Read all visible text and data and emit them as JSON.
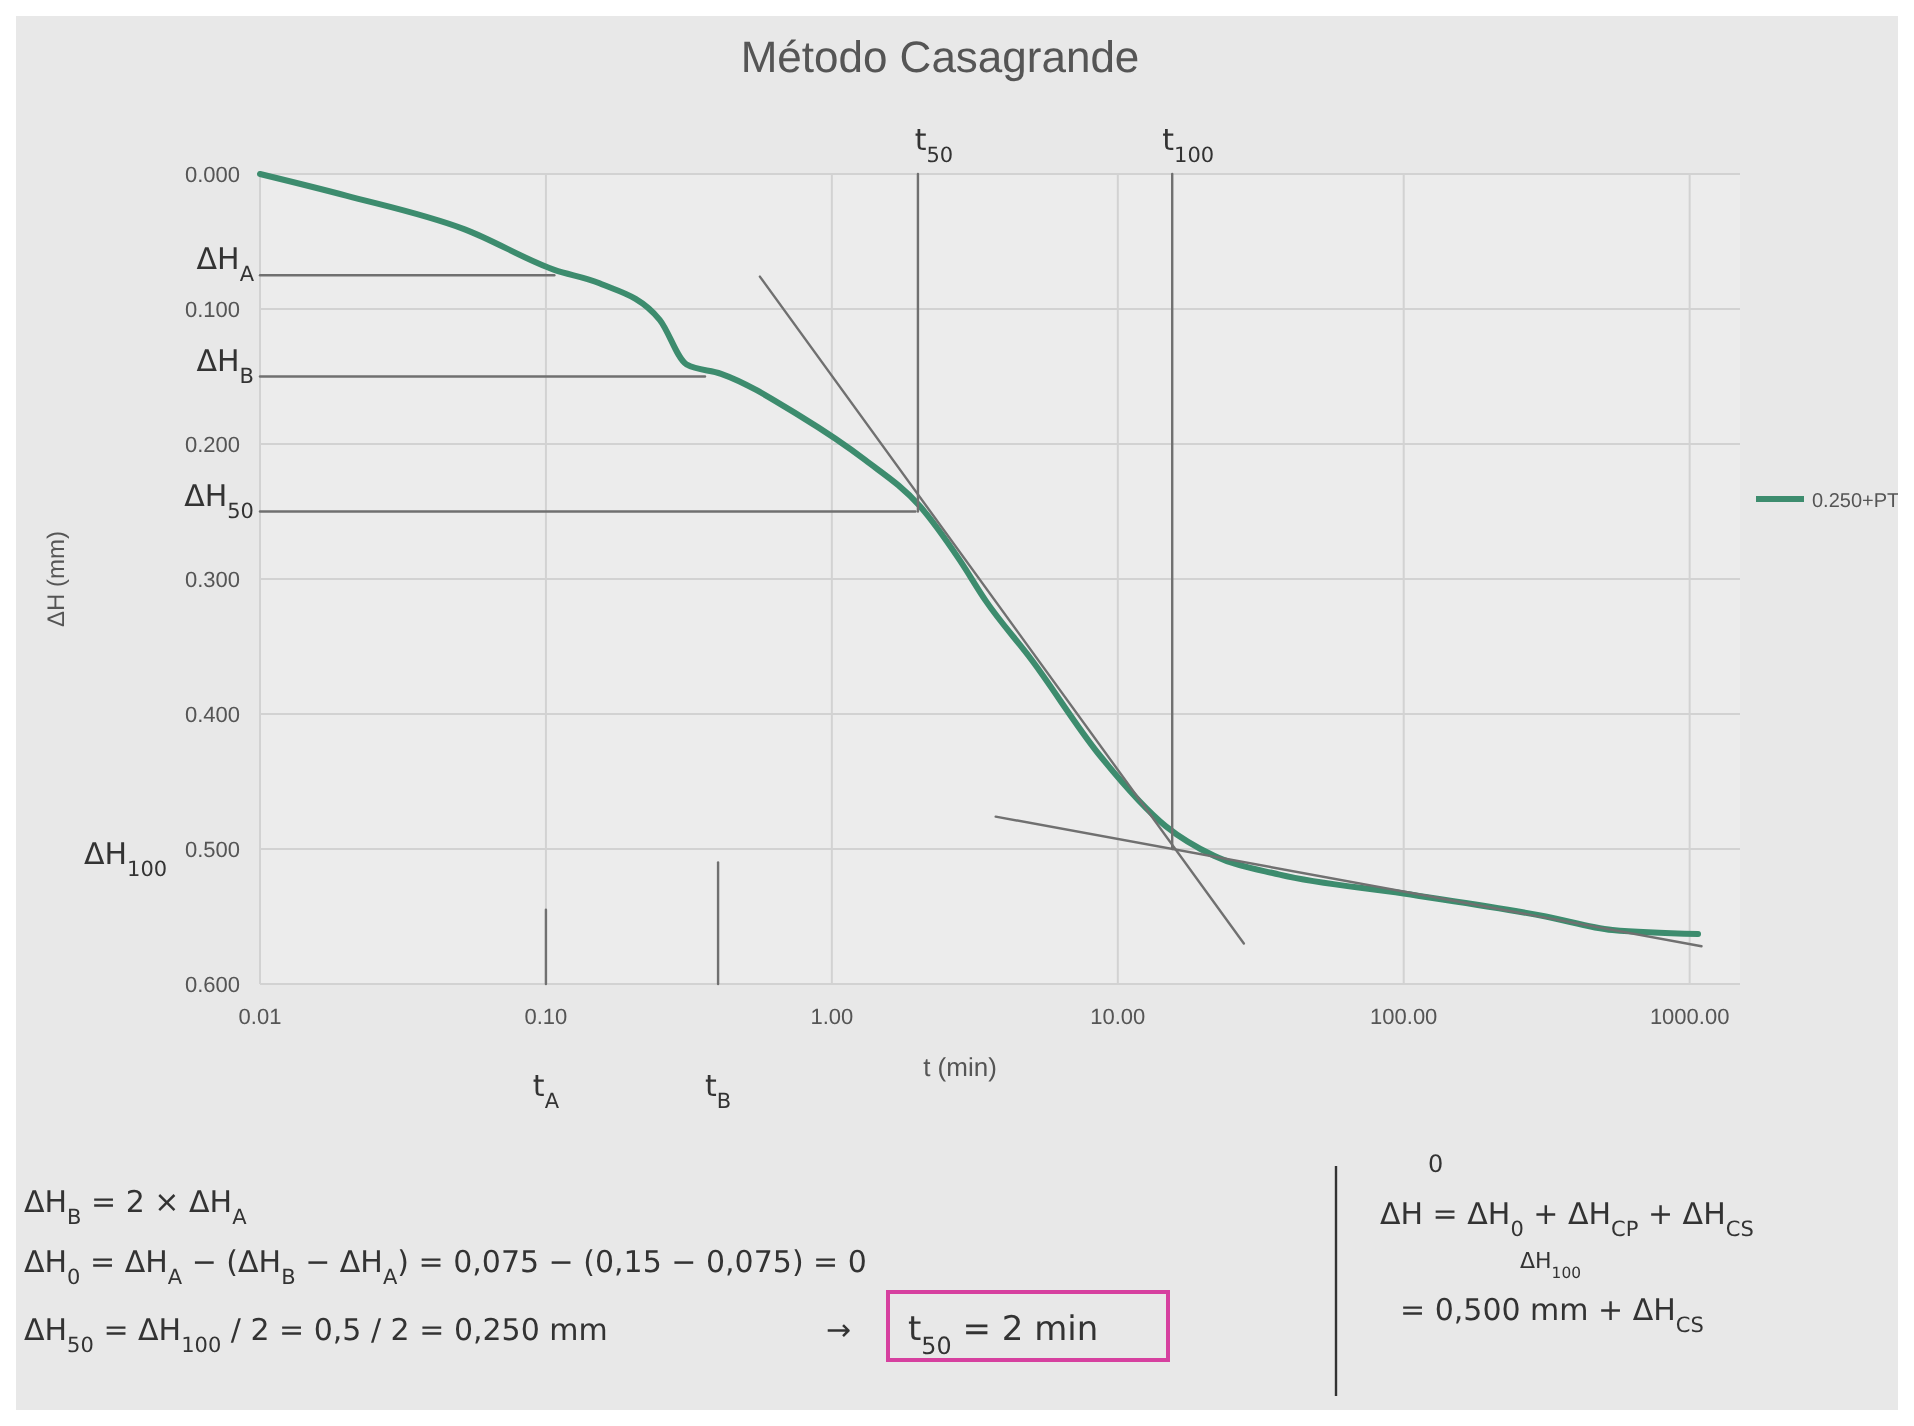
{
  "chart_data": {
    "type": "line",
    "title": "Método Casagrande",
    "xlabel": "t (min)",
    "ylabel": "ΔH (mm)",
    "log": "x",
    "grid": true,
    "legend": "right",
    "xlim": [
      0.01,
      1500
    ],
    "xticks": [
      {
        "value": 0.01,
        "label": "0.01"
      },
      {
        "value": 0.1,
        "label": "0.10"
      },
      {
        "value": 1,
        "label": "1.00"
      },
      {
        "value": 10,
        "label": "10.00"
      },
      {
        "value": 100,
        "label": "100.00"
      },
      {
        "value": 1000,
        "label": "1000.00"
      }
    ],
    "ylim": [
      0.6,
      0
    ],
    "yticks": [
      {
        "value": 0,
        "label": "0.000"
      },
      {
        "value": 0.1,
        "label": "0.100"
      },
      {
        "value": 0.2,
        "label": "0.200"
      },
      {
        "value": 0.3,
        "label": "0.300"
      },
      {
        "value": 0.4,
        "label": "0.400"
      },
      {
        "value": 0.5,
        "label": "0.500"
      },
      {
        "value": 0.6,
        "label": "0.600"
      }
    ],
    "series": [
      {
        "name": "0.250+PT",
        "color": "#3d8c6e",
        "x": [
          0.01,
          0.02,
          0.052,
          0.107,
          0.154,
          0.25,
          0.31,
          0.41,
          0.77,
          1.31,
          2.03,
          2.8,
          3.45,
          5,
          8.6,
          14.7,
          21.7,
          36.8,
          100,
          314,
          537,
          1070
        ],
        "values": [
          0,
          0.016,
          0.041,
          0.071,
          0.081,
          0.108,
          0.141,
          0.148,
          0.179,
          0.212,
          0.246,
          0.286,
          0.316,
          0.36,
          0.43,
          0.483,
          0.505,
          0.519,
          0.533,
          0.55,
          0.56,
          0.563
        ]
      },
      {
        "color": "#707070",
        "x": [
          0.56,
          27.6
        ],
        "values": [
          0.076,
          0.57
        ]
      },
      {
        "color": "#707070",
        "x": [
          3.74,
          1100
        ],
        "values": [
          0.476,
          0.572
        ]
      },
      {
        "color": "#707070",
        "x": [
          0.01,
          0.107
        ],
        "values": [
          0.075,
          0.075
        ]
      },
      {
        "color": "#707070",
        "x": [
          0.01,
          0.36
        ],
        "values": [
          0.15,
          0.15
        ]
      },
      {
        "color": "#707070",
        "x": [
          0.01,
          1.96
        ],
        "values": [
          0.25,
          0.25
        ]
      },
      {
        "color": "#707070",
        "x": [
          2,
          2
        ],
        "values": [
          0.25,
          0
        ]
      },
      {
        "color": "#707070",
        "x": [
          15.5,
          15.5
        ],
        "values": [
          0,
          0.5
        ]
      },
      {
        "color": "#707070",
        "x": [
          0.1,
          0.1
        ],
        "values": [
          0.545,
          0.6
        ]
      },
      {
        "color": "#707070",
        "x": [
          0.4,
          0.4
        ],
        "values": [
          0.51,
          0.6
        ]
      }
    ],
    "annotations": [
      {
        "text": "ΔH$_{A}$",
        "x": 0.01,
        "y": 0.075
      },
      {
        "text": "ΔH$_{B}$",
        "x": 0.01,
        "y": 0.15
      },
      {
        "text": "ΔH$_{50}$",
        "x": 0.01,
        "y": 0.25
      },
      {
        "text": "t$_{50}$",
        "x": 2,
        "y": 0
      },
      {
        "text": "t$_{100}$",
        "x": 15.5,
        "y": 0
      },
      {
        "text": "t$_{A}$",
        "x": 0.1,
        "y": 0.6
      },
      {
        "text": "t$_{B}$",
        "x": 0.4,
        "y": 0.6
      },
      "ΔH$_{B}$ = 2 × ΔH$_{A}$",
      "ΔH$_{0}$ = ΔH$_{A}$ − (ΔH$_{B}$ − ΔH$_{A}$) = 0,075 − (0,15 − 0,075) = 0",
      "ΔH$_{50}$ = ΔH$_{100}$ / 2 = 0,5 / 2 = 0,250 mm",
      "→",
      "t$_{50}$ = 2 min",
      "0",
      "ΔH = ΔH$_{0}$ + ΔH$_{CP}$ + ΔH$_{CS}$",
      "ΔH$_{100}$",
      "= 0,500 mm + ΔH$_{CS}$",
      "ΔH$_{100}$"
    ]
  }
}
